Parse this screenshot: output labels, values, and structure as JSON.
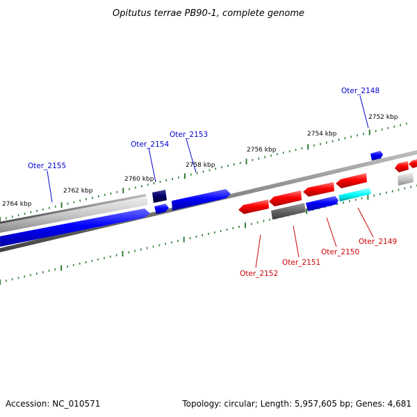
{
  "title": "Opitutus terrae PB90-1, complete genome",
  "footer": {
    "accession": "Accession: NC_010571",
    "summary": "Topology: circular; Length: 5,957,605 bp; Genes: 4,681"
  },
  "scale_labels": [
    "2764 kbp",
    "2762 kbp",
    "2760 kbp",
    "2758 kbp",
    "2756 kbp",
    "2754 kbp",
    "2752 kbp"
  ],
  "genes": {
    "forward": [
      "Oter_2155",
      "Oter_2154",
      "Oter_2153",
      "Oter_2148"
    ],
    "reverse": [
      "Oter_2152",
      "Oter_2151",
      "Oter_2150",
      "Oter_2149"
    ]
  },
  "colors": {
    "forward_gene": "#0000ff",
    "reverse_gene": "#ff0000",
    "forward_label": "#0000cc",
    "reverse_label": "#cc0000",
    "dark_gene": "#000066",
    "cyan_gene": "#00ffff",
    "grey_gene": "#bdbdbd",
    "backbone": "#808080",
    "tick": "#2e7d32"
  }
}
